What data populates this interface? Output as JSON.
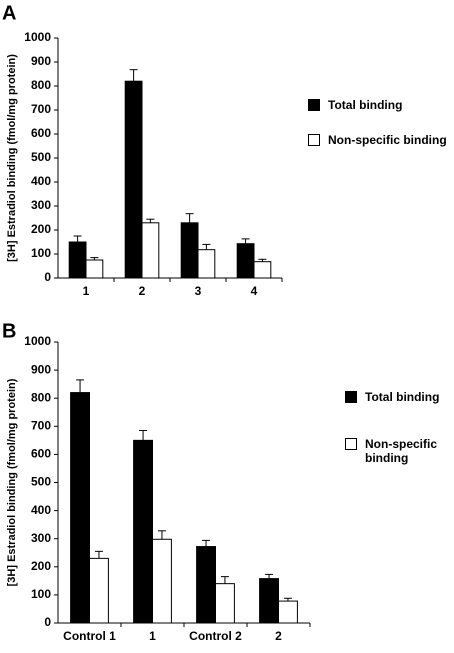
{
  "chart_data": [
    {
      "type": "bar",
      "panel": "A",
      "ylabel": "[3H] Estradiol binding (fmol/mg protein)",
      "categories": [
        "1",
        "2",
        "3",
        "4"
      ],
      "series": [
        {
          "name": "Total binding",
          "color": "#000000",
          "values": [
            150,
            820,
            230,
            143
          ],
          "errors": [
            25,
            48,
            38,
            20
          ]
        },
        {
          "name": "Non-specific binding",
          "color": "#ffffff",
          "values": [
            75,
            230,
            118,
            68
          ],
          "errors": [
            10,
            15,
            22,
            10
          ]
        }
      ],
      "ylim": [
        0,
        1000
      ],
      "yticks": [
        0,
        100,
        200,
        300,
        400,
        500,
        600,
        700,
        800,
        900,
        1000
      ]
    },
    {
      "type": "bar",
      "panel": "B",
      "ylabel": "[3H] Estradiol binding (fmol/mg protein)",
      "categories": [
        "Control 1",
        "1",
        "Control 2",
        "2"
      ],
      "series": [
        {
          "name": "Total binding",
          "color": "#000000",
          "values": [
            820,
            650,
            272,
            158
          ],
          "errors": [
            45,
            35,
            22,
            15
          ]
        },
        {
          "name": "Non-specific binding",
          "color": "#ffffff",
          "values": [
            230,
            298,
            140,
            78
          ],
          "errors": [
            25,
            30,
            25,
            10
          ]
        }
      ],
      "ylim": [
        0,
        1000
      ],
      "yticks": [
        0,
        100,
        200,
        300,
        400,
        500,
        600,
        700,
        800,
        900,
        1000
      ]
    }
  ]
}
